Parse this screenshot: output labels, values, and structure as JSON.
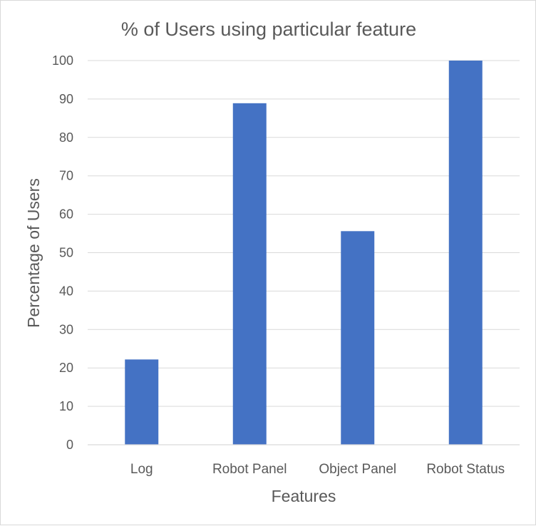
{
  "chart_data": {
    "type": "bar",
    "title": "% of Users using particular feature",
    "xlabel": "Features",
    "ylabel": "Percentage of Users",
    "categories": [
      "Log",
      "Robot Panel",
      "Object Panel",
      "Robot Status"
    ],
    "series": [
      {
        "values": [
          22.2,
          88.9,
          55.6,
          100
        ],
        "color": "#4472c4"
      }
    ],
    "ylim": [
      0,
      100
    ],
    "yticks": [
      0,
      10,
      20,
      30,
      40,
      50,
      60,
      70,
      80,
      90,
      100
    ],
    "grid": true,
    "legend": "none"
  }
}
